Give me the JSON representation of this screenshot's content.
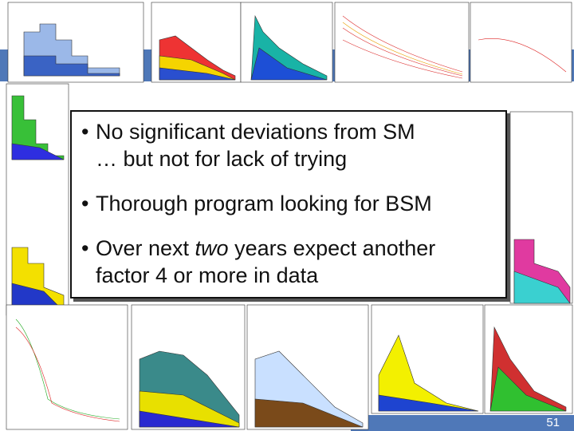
{
  "slide": {
    "bullets": [
      {
        "lines": [
          [
            "No significant deviations from SM"
          ],
          [
            "… but not for lack of trying"
          ]
        ]
      },
      {
        "lines": [
          [
            "Thorough program looking for BSM"
          ]
        ]
      },
      {
        "lines": [
          [
            "Over next ",
            "two",
            " years expect another"
          ],
          [
            "factor 4 or more in data"
          ]
        ]
      }
    ],
    "page_number": "51"
  }
}
